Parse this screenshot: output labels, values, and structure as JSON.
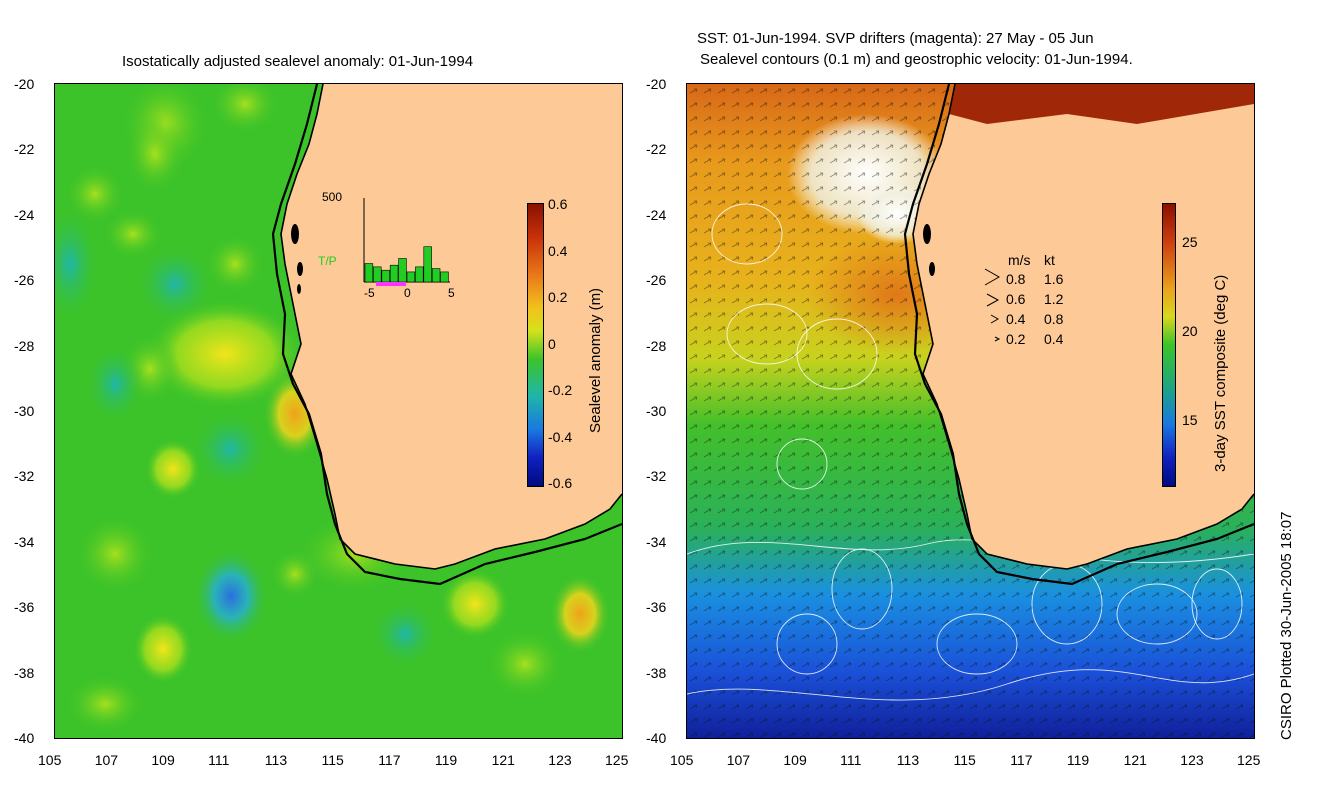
{
  "left_panel": {
    "title": "Isostatically adjusted sealevel anomaly: 01-Jun-1994",
    "y_ticks": [
      "-20",
      "-22",
      "-24",
      "-26",
      "-28",
      "-30",
      "-32",
      "-34",
      "-36",
      "-38",
      "-40"
    ],
    "x_ticks": [
      "105",
      "107",
      "109",
      "111",
      "113",
      "115",
      "117",
      "119",
      "121",
      "123",
      "125"
    ],
    "colorbar": {
      "label": "Sealevel anomaly (m)",
      "ticks": [
        "0.6",
        "0.4",
        "0.2",
        "0",
        "-0.2",
        "-0.4",
        "-0.6"
      ]
    },
    "inset": {
      "ymax_label": "500",
      "series_label": "T/P",
      "x_ticks": [
        "-5",
        "0",
        "5"
      ],
      "bar_values": [
        0.22,
        0.18,
        0.14,
        0.2,
        0.28,
        0.12,
        0.18,
        0.42,
        0.16,
        0.12
      ],
      "bar_color": "#22cc22",
      "drifter_color": "#ff33ff"
    }
  },
  "right_panel": {
    "title_line1": "SST: 01-Jun-1994. SVP drifters (magenta): 27 May - 05 Jun",
    "title_line2": "Sealevel contours (0.1 m) and geostrophic velocity: 01-Jun-1994.",
    "y_ticks": [
      "-20",
      "-22",
      "-24",
      "-26",
      "-28",
      "-30",
      "-32",
      "-34",
      "-36",
      "-38",
      "-40"
    ],
    "x_ticks": [
      "105",
      "107",
      "109",
      "111",
      "113",
      "115",
      "117",
      "119",
      "121",
      "123",
      "125"
    ],
    "colorbar": {
      "label": "3-day SST composite (deg C)",
      "ticks": [
        "25",
        "20",
        "15"
      ]
    },
    "velocity_legend": {
      "header_ms": "m/s",
      "header_kt": "kt",
      "rows": [
        {
          "ms": "0.8",
          "kt": "1.6"
        },
        {
          "ms": "0.6",
          "kt": "1.2"
        },
        {
          "ms": "0.4",
          "kt": "0.8"
        },
        {
          "ms": "0.2",
          "kt": "0.4"
        }
      ]
    }
  },
  "credit": "CSIRO Plotted 30-Jun-2005 18:07",
  "colors": {
    "land": "#fcc997",
    "ocean_base": "#22c02a",
    "coast": "#000000"
  }
}
